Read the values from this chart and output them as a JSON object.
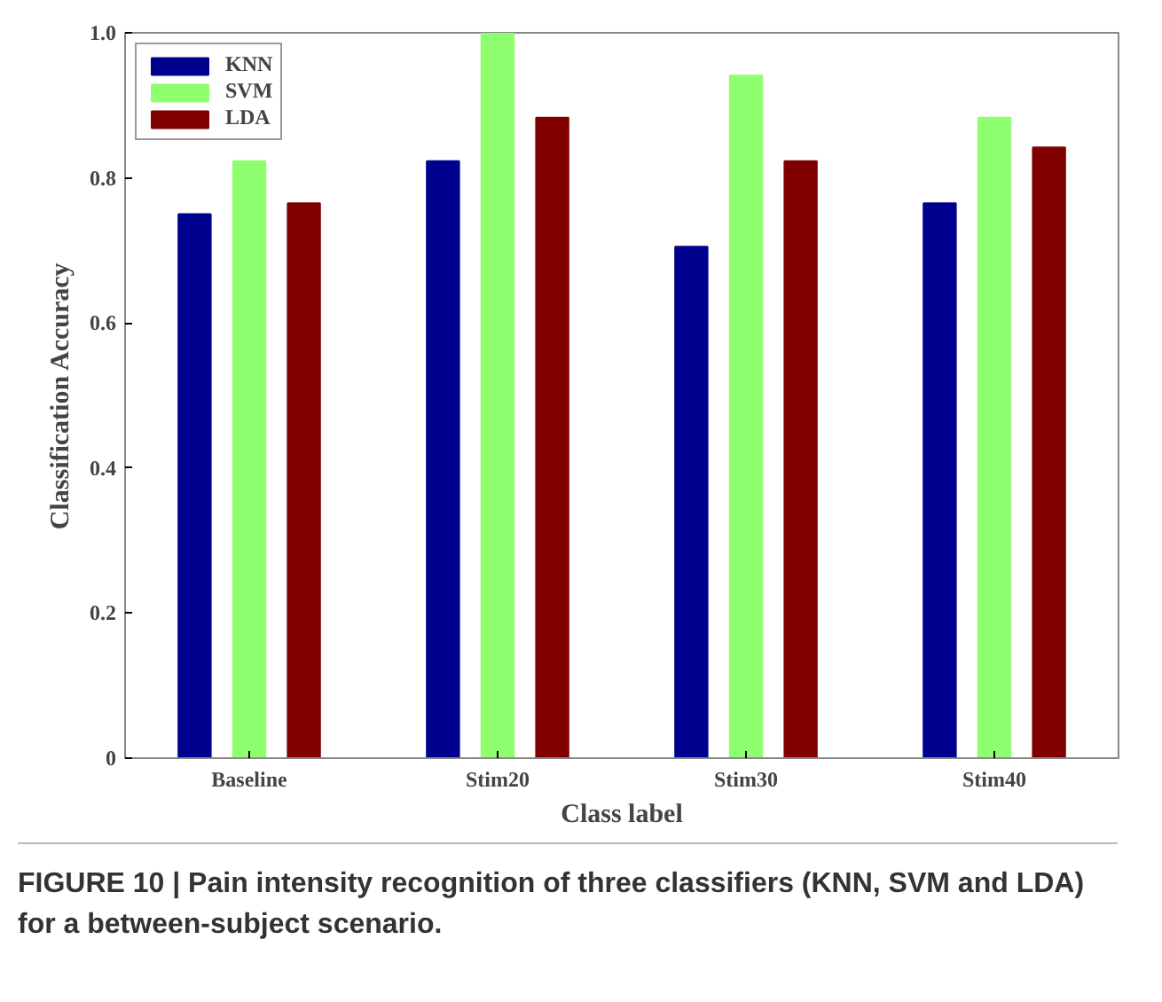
{
  "chart_data": {
    "type": "bar",
    "xlabel": "Class label",
    "ylabel": "Classification Accuracy",
    "categories": [
      "Baseline",
      "Stim20",
      "Stim30",
      "Stim40"
    ],
    "series": [
      {
        "name": "KNN",
        "color": "#00008f",
        "values": [
          0.75,
          0.823,
          0.705,
          0.765
        ]
      },
      {
        "name": "SVM",
        "color": "#8fff70",
        "values": [
          0.823,
          1.0,
          0.941,
          0.883
        ]
      },
      {
        "name": "LDA",
        "color": "#800000",
        "values": [
          0.765,
          0.883,
          0.823,
          0.842
        ]
      }
    ],
    "ylim": [
      0,
      1
    ],
    "yticks": [
      {
        "value": 0,
        "label": "0"
      },
      {
        "value": 0.2,
        "label": "0.2"
      },
      {
        "value": 0.4,
        "label": "0.4"
      },
      {
        "value": 0.6,
        "label": "0.6"
      },
      {
        "value": 0.8,
        "label": "0.8"
      },
      {
        "value": 1,
        "label": "1.0"
      }
    ],
    "grid": false,
    "legend": "top left",
    "annotations": [
      "FIGURE 10 | Pain intensity recognition of three classifiers (KNN, SVM and LDA) for a between-subject scenario."
    ]
  }
}
